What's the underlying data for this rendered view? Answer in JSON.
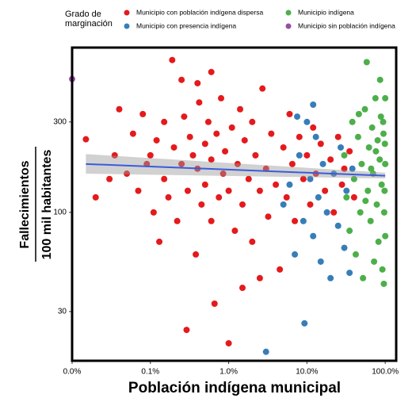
{
  "chart_data": {
    "type": "scatter",
    "legend_title": [
      "Grado de",
      "marginación"
    ],
    "xlabel": "Población indígena municipal",
    "ylabel": [
      "Fallecimientos",
      "100 mil habitantes"
    ],
    "xscale": "log",
    "yscale": "log",
    "xlim": [
      0.01,
      138
    ],
    "ylim": [
      16.5,
      740
    ],
    "xticks": [
      {
        "value": 0.01,
        "label": "0.0%"
      },
      {
        "value": 0.1,
        "label": "0.1%"
      },
      {
        "value": 1,
        "label": "1.0%"
      },
      {
        "value": 10,
        "label": "10.0%"
      },
      {
        "value": 100,
        "label": "100.0%"
      }
    ],
    "yticks": [
      30,
      100,
      300
    ],
    "series": [
      {
        "name": "Municipio con población indígena dispersa",
        "color": "#e41a1c",
        "x": [
          0.015,
          0.02,
          0.03,
          0.035,
          0.04,
          0.05,
          0.06,
          0.07,
          0.08,
          0.09,
          0.1,
          0.11,
          0.12,
          0.13,
          0.15,
          0.15,
          0.17,
          0.19,
          0.2,
          0.22,
          0.25,
          0.27,
          0.29,
          0.3,
          0.32,
          0.35,
          0.38,
          0.4,
          0.42,
          0.45,
          0.5,
          0.5,
          0.55,
          0.6,
          0.6,
          0.66,
          0.7,
          0.75,
          0.8,
          0.85,
          0.9,
          1.0,
          1.0,
          1.1,
          1.2,
          1.3,
          1.4,
          1.5,
          1.6,
          1.8,
          2.0,
          2.0,
          2.2,
          2.5,
          2.7,
          3.0,
          3.2,
          3.5,
          4.0,
          4.5,
          5.0,
          5.5,
          6.0,
          6.5,
          7.0,
          8.0,
          9.0,
          10,
          11,
          12,
          13,
          15,
          17,
          20,
          22,
          25,
          28,
          30,
          35,
          40,
          0.25,
          0.6,
          2.5,
          1.5,
          0.4
        ],
        "values": [
          243,
          120,
          150,
          200,
          350,
          160,
          260,
          130,
          330,
          180,
          200,
          100,
          240,
          70,
          300,
          150,
          120,
          636,
          220,
          90,
          180,
          320,
          24,
          130,
          250,
          200,
          60,
          170,
          380,
          110,
          230,
          140,
          300,
          90,
          190,
          33,
          260,
          120,
          400,
          160,
          210,
          20.4,
          130,
          280,
          80,
          180,
          350,
          110,
          240,
          150,
          300,
          70,
          200,
          130,
          450,
          170,
          95,
          260,
          140,
          50,
          220,
          120,
          330,
          180,
          90,
          250,
          150,
          200,
          110,
          280,
          160,
          230,
          130,
          190,
          100,
          250,
          140,
          170,
          210,
          120,
          500,
          550,
          45,
          40,
          480
        ]
      },
      {
        "name": "Municipio con presencia indígena",
        "color": "#377eb8",
        "x": [
          3,
          9.3,
          5,
          6,
          7,
          8,
          9,
          10,
          11,
          12,
          13,
          14,
          15,
          16,
          18,
          20,
          22,
          25,
          27,
          30,
          32,
          35,
          38,
          12,
          7.5
        ],
        "values": [
          18.4,
          26,
          110,
          140,
          60,
          200,
          90,
          300,
          150,
          75,
          250,
          120,
          55,
          180,
          100,
          45,
          160,
          85,
          220,
          65,
          130,
          48,
          170,
          370,
          320
        ]
      },
      {
        "name": "Municipio indígena",
        "color": "#4daf4a",
        "x": [
          30,
          32,
          35,
          38,
          40,
          42,
          45,
          48,
          50,
          52,
          55,
          58,
          60,
          62,
          65,
          68,
          70,
          72,
          75,
          78,
          80,
          82,
          85,
          88,
          90,
          92,
          95,
          97,
          100,
          100,
          100,
          99,
          98,
          96,
          94,
          86,
          76,
          66,
          56,
          46
        ],
        "values": [
          200,
          120,
          80,
          300,
          150,
          60,
          250,
          100,
          180,
          45,
          350,
          620,
          130,
          220,
          90,
          280,
          160,
          55,
          400,
          110,
          240,
          70,
          190,
          320,
          140,
          50,
          260,
          100,
          180,
          400,
          75,
          230,
          130,
          42,
          300,
          500,
          210,
          170,
          115,
          330
        ]
      },
      {
        "name": "Municipio sin población indígena",
        "color": "#984ea3",
        "x": [
          0.01
        ],
        "values": [
          505
        ]
      }
    ],
    "trend": {
      "color": "#3b5bdb",
      "x": [
        0.015,
        100
      ],
      "values": [
        180,
        156
      ],
      "lower": [
        160,
        151
      ],
      "upper": [
        203,
        162
      ]
    }
  }
}
